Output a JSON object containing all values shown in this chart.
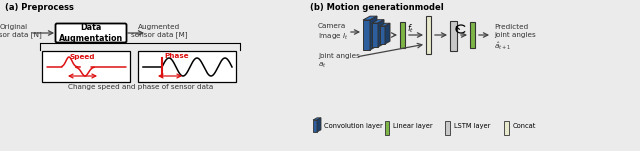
{
  "bg_color": "#ebebeb",
  "panel_a_title": "(a) Preprocess",
  "panel_b_title": "(b) Motion generationmodel",
  "text_original": "Original\nsensor data [N]",
  "text_augmented": "Augmented\nsensor data [M]",
  "text_da": "Data\nAugmentation",
  "text_change": "Change speed and phase of sensor data",
  "text_speed": "Speed",
  "text_phase": "Phase",
  "text_camera": "Camera\nImage $I_t$",
  "text_joints": "Joint angles\n$a_t$",
  "text_ft": "$f_t$",
  "text_predicted": "Predicted\njoint angles\n$\\hat{a}_{t+1}$",
  "text_legend_conv": "Convolution layer",
  "text_legend_linear": "Linear layer",
  "text_legend_lstm": "LSTM layer",
  "text_legend_concat": "Concat",
  "color_conv": "#2d5f9e",
  "color_linear": "#7db646",
  "color_lstm_fill": "#c8c8c8",
  "color_concat_fill": "#e8e8cc",
  "color_red": "#dd1111",
  "color_arrow": "#444444"
}
